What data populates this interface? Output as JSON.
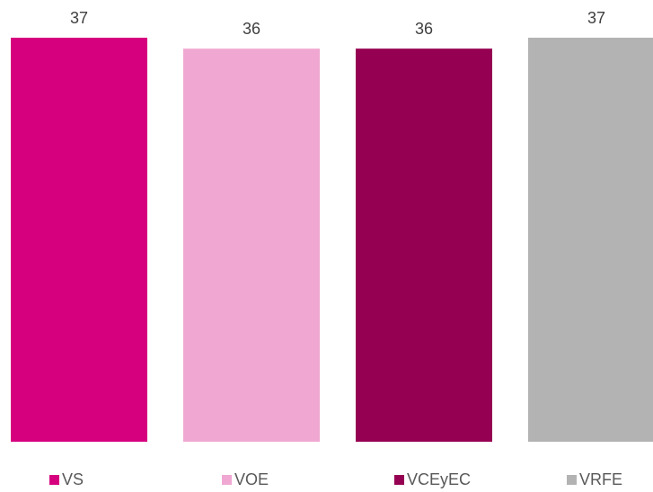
{
  "chart_data": {
    "type": "bar",
    "categories": [
      "VS",
      "VOE",
      "VCEyEC",
      "VRFE"
    ],
    "values": [
      37,
      36,
      36,
      37
    ],
    "colors": [
      "#D6007F",
      "#F0A8D2",
      "#960052",
      "#B3B3B3"
    ],
    "data_labels": [
      "37",
      "36",
      "36",
      "37"
    ],
    "legend": {
      "position": "bottom",
      "entries": [
        "VS",
        "VOE",
        "VCEyEC",
        "VRFE"
      ]
    },
    "title": "",
    "xlabel": "",
    "ylabel": "",
    "ylim": [
      0,
      37
    ],
    "grid": false,
    "axes_visible": false
  }
}
